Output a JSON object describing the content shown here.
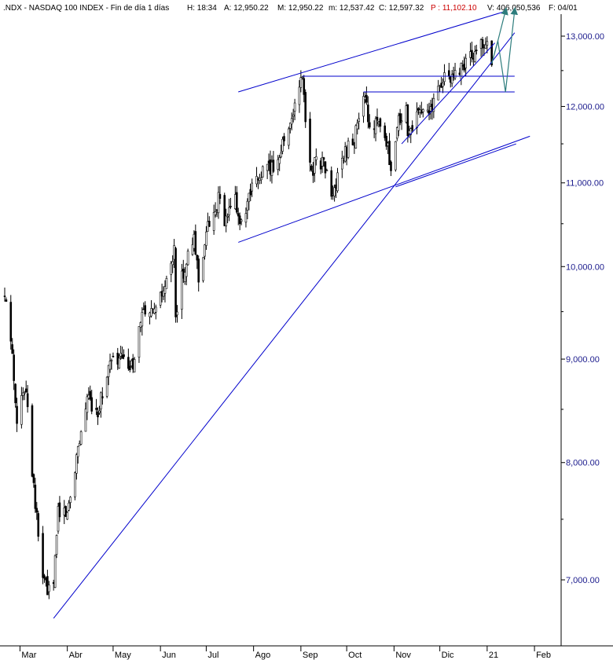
{
  "header": {
    "symbol": ".NDX - NASDAQ 100 INDEX - Fin de día 1 días",
    "high": "H: 18:34",
    "a": "A: 12,950.22",
    "m": "M: 12,950.22",
    "low": "m: 12,537.42",
    "close": "C: 12,597.32",
    "p": "P : 11,102.10",
    "volume": "V: 406,050,536",
    "date": "F: 04/01"
  },
  "colors": {
    "background": "#ffffff",
    "trendline": "#0000cc",
    "arrow": "#2e7d7d",
    "p_field": "#cc0000",
    "price_axis": "#1a1a8c",
    "candles": "#000000"
  },
  "chart_data": {
    "type": "candlestick",
    "title": "",
    "xlabel": "",
    "ylabel": "",
    "scale": "log",
    "ylim": [
      6650,
      13400
    ],
    "y_ticks": [
      7000,
      8000,
      9000,
      10000,
      11000,
      12000,
      13000
    ],
    "y_tick_labels": [
      "7,000.00",
      "8,000.00",
      "9,000.00",
      "10,000.00",
      "11,000.00",
      "12,000.00",
      "13,000.00"
    ],
    "x_ticks": [
      "Mar",
      "Abr",
      "May",
      "Jun",
      "Jul",
      "Ago",
      "Sep",
      "Oct",
      "Nov",
      "Dic",
      "21",
      "Feb"
    ],
    "price_path": [
      [
        "2020-02-20",
        9650
      ],
      [
        "2020-02-24",
        9220
      ],
      [
        "2020-02-28",
        8430
      ],
      [
        "2020-03-05",
        8750
      ],
      [
        "2020-03-09",
        7950
      ],
      [
        "2020-03-12",
        7500
      ],
      [
        "2020-03-16",
        7020
      ],
      [
        "2020-03-20",
        6900
      ],
      [
        "2020-03-23",
        6950
      ],
      [
        "2020-03-26",
        7600
      ],
      [
        "2020-04-01",
        7550
      ],
      [
        "2020-04-08",
        8150
      ],
      [
        "2020-04-14",
        8600
      ],
      [
        "2020-04-21",
        8500
      ],
      [
        "2020-04-29",
        8950
      ],
      [
        "2020-05-06",
        9000
      ],
      [
        "2020-05-13",
        8900
      ],
      [
        "2020-05-20",
        9450
      ],
      [
        "2020-05-27",
        9450
      ],
      [
        "2020-06-03",
        9700
      ],
      [
        "2020-06-10",
        10150
      ],
      [
        "2020-06-11",
        9500
      ],
      [
        "2020-06-16",
        9950
      ],
      [
        "2020-06-23",
        10300
      ],
      [
        "2020-06-26",
        9900
      ],
      [
        "2020-07-02",
        10450
      ],
      [
        "2020-07-09",
        10800
      ],
      [
        "2020-07-13",
        10500
      ],
      [
        "2020-07-20",
        10800
      ],
      [
        "2020-07-24",
        10450
      ],
      [
        "2020-07-31",
        10900
      ],
      [
        "2020-08-07",
        11150
      ],
      [
        "2020-08-14",
        11200
      ],
      [
        "2020-08-21",
        11550
      ],
      [
        "2020-08-28",
        12000
      ],
      [
        "2020-09-02",
        12420
      ],
      [
        "2020-09-04",
        11800
      ],
      [
        "2020-09-08",
        11150
      ],
      [
        "2020-09-11",
        11300
      ],
      [
        "2020-09-16",
        11250
      ],
      [
        "2020-09-21",
        10850
      ],
      [
        "2020-09-24",
        10950
      ],
      [
        "2020-09-30",
        11400
      ],
      [
        "2020-10-05",
        11500
      ],
      [
        "2020-10-12",
        12100
      ],
      [
        "2020-10-16",
        11800
      ],
      [
        "2020-10-23",
        11700
      ],
      [
        "2020-10-28",
        11400
      ],
      [
        "2020-10-30",
        11050
      ],
      [
        "2020-11-04",
        11800
      ],
      [
        "2020-11-09",
        11950
      ],
      [
        "2020-11-10",
        11600
      ],
      [
        "2020-11-16",
        11950
      ],
      [
        "2020-11-23",
        11900
      ],
      [
        "2020-11-30",
        12200
      ],
      [
        "2020-12-04",
        12450
      ],
      [
        "2020-12-09",
        12350
      ],
      [
        "2020-12-15",
        12550
      ],
      [
        "2020-12-21",
        12700
      ],
      [
        "2020-12-28",
        12850
      ],
      [
        "2020-12-31",
        12890
      ],
      [
        "2021-01-04",
        12600
      ]
    ],
    "trendlines": [
      {
        "name": "upper channel",
        "from": [
          "2020-07-22",
          12200
        ],
        "to": [
          "2021-01-14",
          13380
        ]
      },
      {
        "name": "long-term support",
        "from": [
          "2020-03-23",
          6700
        ],
        "to": [
          "2021-01-19",
          13050
        ]
      },
      {
        "name": "rising support",
        "from": [
          "2020-07-22",
          10280
        ],
        "to": [
          "2021-01-29",
          11600
        ]
      },
      {
        "name": "rising support 2",
        "from": [
          "2020-11-02",
          10950
        ],
        "to": [
          "2021-01-20",
          11500
        ]
      },
      {
        "name": "short-term support",
        "from": [
          "2020-11-06",
          11500
        ],
        "to": [
          "2021-01-06",
          12900
        ]
      },
      {
        "name": "resistance",
        "from": [
          "2020-09-02",
          12420
        ],
        "to": [
          "2021-01-19",
          12420
        ]
      },
      {
        "name": "support",
        "from": [
          "2020-10-12",
          12200
        ],
        "to": [
          "2021-01-19",
          12200
        ]
      }
    ],
    "projection_arrows": [
      {
        "points": [
          [
            "2021-01-04",
            12600
          ],
          [
            "2021-01-08",
            12930
          ],
          [
            "2021-01-13",
            13380
          ]
        ]
      },
      {
        "points": [
          [
            "2021-01-04",
            12600
          ],
          [
            "2021-01-08",
            12930
          ],
          [
            "2021-01-13",
            12200
          ],
          [
            "2021-01-19",
            13380
          ]
        ]
      }
    ]
  }
}
